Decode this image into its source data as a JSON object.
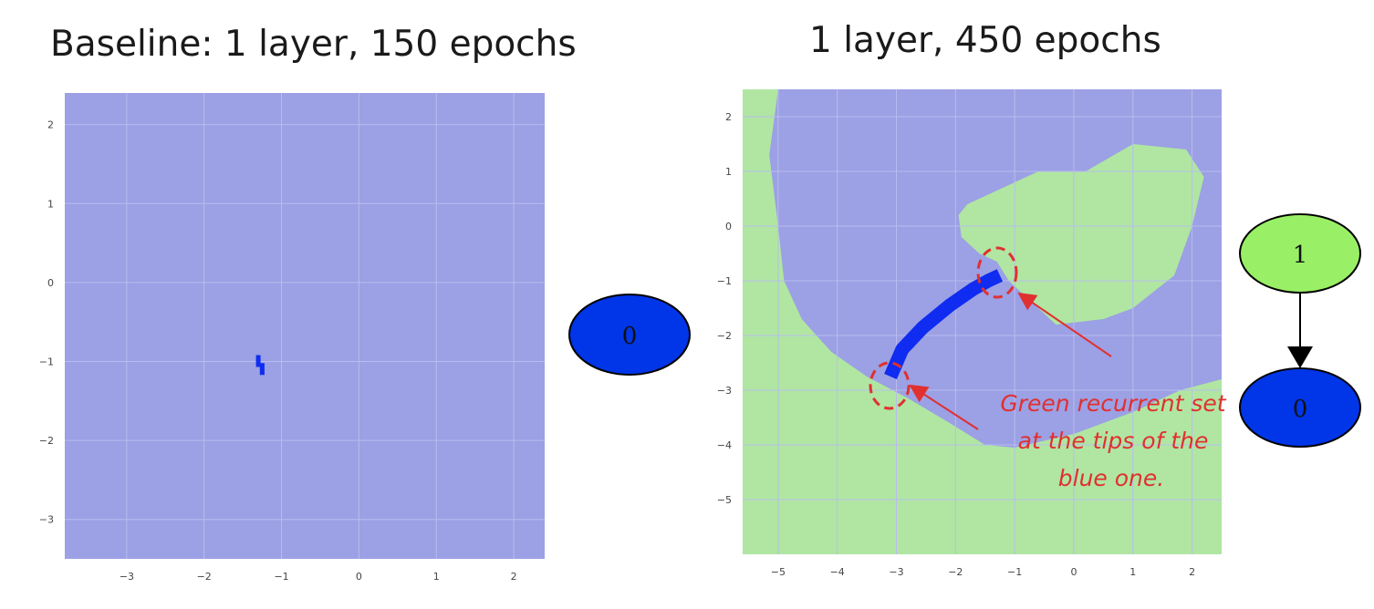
{
  "titles": {
    "left": "Baseline: 1 layer, 150 epochs",
    "right": "1 layer, 450 epochs"
  },
  "colors": {
    "blue_region": "#9ca0e4",
    "green_region": "#b0e6a2",
    "blue_set": "#0f2cf0",
    "node_blue": "#0036e8",
    "node_green": "#99f066",
    "annotation": "#e03030",
    "grid": "#b8bdee"
  },
  "chart_data": [
    {
      "type": "heatmap",
      "xlim": [
        -3.8,
        2.4
      ],
      "ylim": [
        -3.5,
        2.4
      ],
      "x_ticks": [
        -3,
        -2,
        -1,
        0,
        1,
        2
      ],
      "y_ticks": [
        2,
        1,
        0,
        -1,
        -2,
        -3
      ],
      "x_tick_labels": [
        "−3",
        "−2",
        "−1",
        "0",
        "1",
        "2"
      ],
      "y_tick_labels": [
        "2",
        "1",
        "0",
        "−1",
        "−2",
        "−3"
      ],
      "grid": true,
      "background_region": "blue",
      "blue_set": [
        [
          -1.33,
          -0.92
        ],
        [
          -1.27,
          -0.92
        ],
        [
          -1.27,
          -1.02
        ],
        [
          -1.22,
          -1.02
        ],
        [
          -1.22,
          -1.17
        ],
        [
          -1.28,
          -1.17
        ],
        [
          -1.28,
          -1.07
        ],
        [
          -1.33,
          -1.07
        ]
      ],
      "graph": {
        "nodes": [
          {
            "label": "0",
            "color": "blue"
          }
        ]
      }
    },
    {
      "type": "heatmap",
      "xlim": [
        -5.6,
        2.5
      ],
      "ylim": [
        -6,
        2.5
      ],
      "x_ticks": [
        -5,
        -4,
        -3,
        -2,
        -1,
        0,
        1,
        2
      ],
      "y_ticks": [
        2,
        1,
        0,
        -1,
        -2,
        -3,
        -4,
        -5
      ],
      "x_tick_labels": [
        "−5",
        "−4",
        "−3",
        "−2",
        "−1",
        "0",
        "1",
        "2"
      ],
      "y_tick_labels": [
        "2",
        "1",
        "0",
        "−1",
        "−2",
        "−3",
        "−4",
        "−5"
      ],
      "grid": true,
      "background_region": "green",
      "blue_region": [
        [
          -5.0,
          2.5
        ],
        [
          -5.15,
          1.3
        ],
        [
          -5.0,
          0.0
        ],
        [
          -4.9,
          -1.0
        ],
        [
          -4.6,
          -1.7
        ],
        [
          -4.1,
          -2.3
        ],
        [
          -3.5,
          -2.75
        ],
        [
          -2.8,
          -3.15
        ],
        [
          -2.1,
          -3.6
        ],
        [
          -1.5,
          -4.0
        ],
        [
          -1.0,
          -4.05
        ],
        [
          0.0,
          -3.8
        ],
        [
          1.0,
          -3.4
        ],
        [
          1.8,
          -3.0
        ],
        [
          2.5,
          -2.8
        ],
        [
          2.5,
          2.5
        ]
      ],
      "green_island": [
        [
          -1.8,
          0.4
        ],
        [
          -0.6,
          1.0
        ],
        [
          0.2,
          1.0
        ],
        [
          1.0,
          1.5
        ],
        [
          1.9,
          1.4
        ],
        [
          2.2,
          0.9
        ],
        [
          2.0,
          0.0
        ],
        [
          1.7,
          -0.9
        ],
        [
          1.0,
          -1.5
        ],
        [
          0.5,
          -1.7
        ],
        [
          -0.3,
          -1.8
        ],
        [
          -0.8,
          -1.3
        ],
        [
          -1.1,
          -1.0
        ],
        [
          -1.3,
          -0.65
        ],
        [
          -1.6,
          -0.5
        ],
        [
          -1.9,
          -0.2
        ],
        [
          -1.95,
          0.2
        ]
      ],
      "blue_set_path": [
        [
          -3.1,
          -2.75
        ],
        [
          -2.9,
          -2.25
        ],
        [
          -2.55,
          -1.85
        ],
        [
          -2.1,
          -1.45
        ],
        [
          -1.7,
          -1.15
        ],
        [
          -1.45,
          -1.0
        ],
        [
          -1.25,
          -0.9
        ]
      ],
      "graph": {
        "nodes": [
          {
            "label": "1",
            "color": "green"
          },
          {
            "label": "0",
            "color": "blue"
          }
        ],
        "edges": [
          [
            "1",
            "0"
          ]
        ]
      }
    }
  ],
  "annotation": {
    "lines": [
      "Green recurrent set",
      "at the tips of the",
      "blue one."
    ]
  }
}
